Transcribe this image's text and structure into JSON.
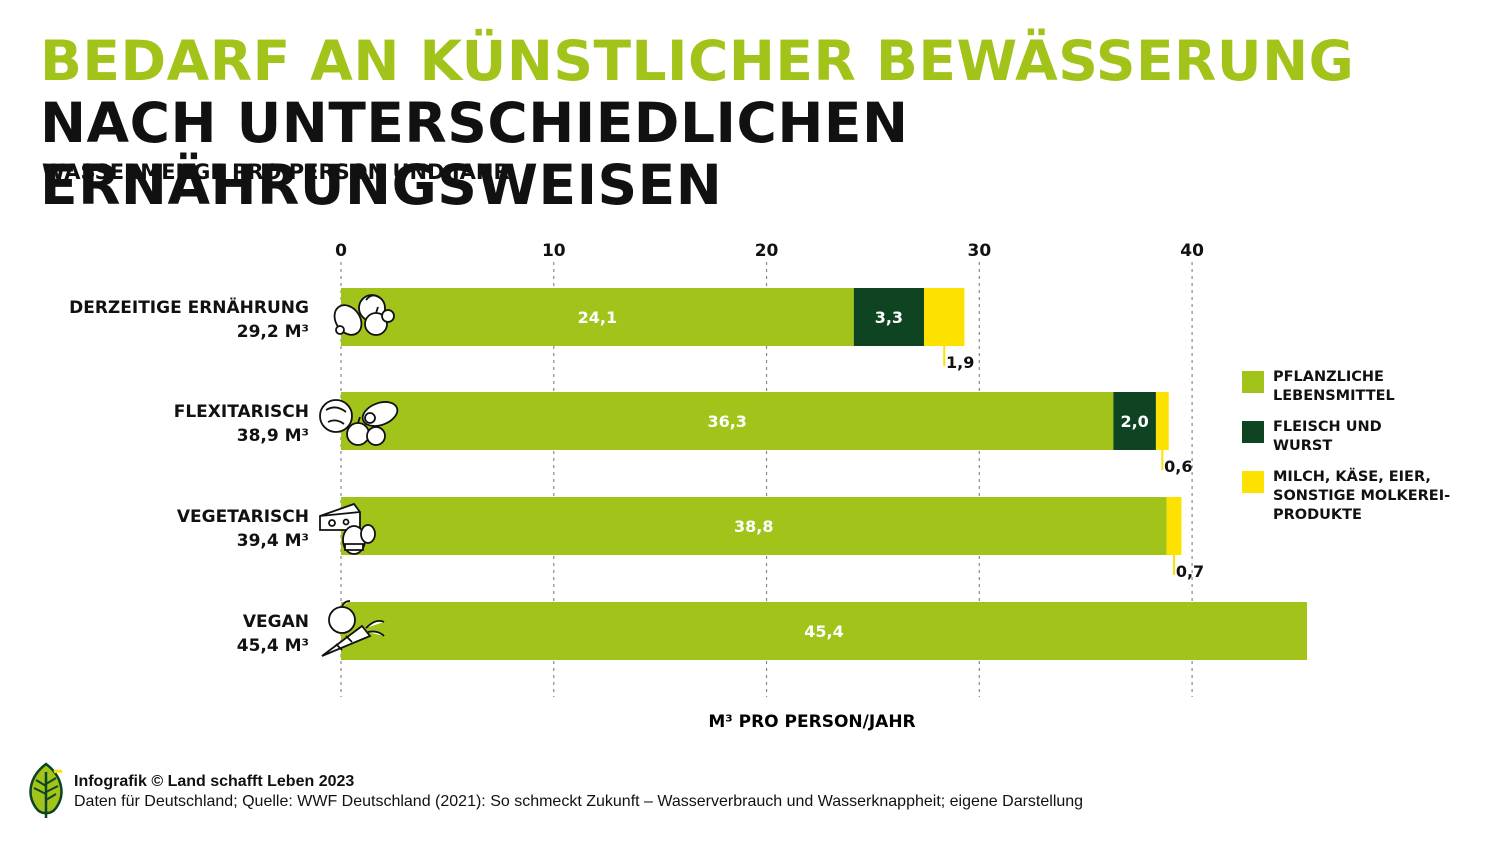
{
  "title": {
    "highlight": "BEDARF AN KÜNSTLICHER BEWÄSSERUNG",
    "rest": "NACH UNTERSCHIEDLICHEN ERNÄHRUNGSWEISEN"
  },
  "subtitle": "WASSERMENGE PRO PERSON UND JAHR",
  "chart_data": {
    "type": "bar",
    "orientation": "horizontal",
    "stacked": true,
    "xlabel": "M³ PRO PERSON/JAHR",
    "xlim": [
      0,
      45.4
    ],
    "xticks": [
      0,
      10,
      20,
      30,
      40
    ],
    "grid": "vertical dashed",
    "legend_position": "right",
    "categories": [
      {
        "name": "DERZEITIGE ERNÄHRUNG",
        "total": "29,2 M³",
        "icon": "meat-vegetables-icon"
      },
      {
        "name": "FLEXITARISCH",
        "total": "38,9 M³",
        "icon": "vegetables-meat-icon"
      },
      {
        "name": "VEGETARISCH",
        "total": "39,4 M³",
        "icon": "cheese-egg-icon"
      },
      {
        "name": "VEGAN",
        "total": "45,4 M³",
        "icon": "apple-carrot-icon"
      }
    ],
    "series": [
      {
        "name": "PFLANZLICHE LEBENSMITTEL",
        "color": "#a2c41a",
        "values": [
          24.1,
          36.3,
          38.8,
          45.4
        ],
        "labels": [
          "24,1",
          "36,3",
          "38,8",
          "45,4"
        ]
      },
      {
        "name": "FLEISCH UND WURST",
        "color": "#0e4421",
        "values": [
          3.3,
          2.0,
          0,
          0
        ],
        "labels": [
          "3,3",
          "2,0",
          "",
          ""
        ]
      },
      {
        "name": "MILCH, KÄSE, EIER, SONSTIGE MOLKEREI-PRODUKTE",
        "color": "#fde100",
        "values": [
          1.9,
          0.6,
          0.7,
          0
        ],
        "labels": [
          "1,9",
          "0,6",
          "0,7",
          ""
        ]
      }
    ]
  },
  "legend": [
    {
      "label": "PFLANZLICHE\nLEBENSMITTEL",
      "color": "#a2c41a"
    },
    {
      "label": "FLEISCH UND\nWURST",
      "color": "#0e4421"
    },
    {
      "label": "MILCH, KÄSE, EIER,\nSONSTIGE MOLKEREI-\nPRODUKTE",
      "color": "#fde100"
    }
  ],
  "footer": {
    "credit": "Infografik © Land schafft Leben 2023",
    "source": "Daten für Deutschland; Quelle: WWF Deutschland (2021): So schmeckt Zukunft – Wasserverbrauch und Wasserknappheit; eigene Darstellung"
  }
}
